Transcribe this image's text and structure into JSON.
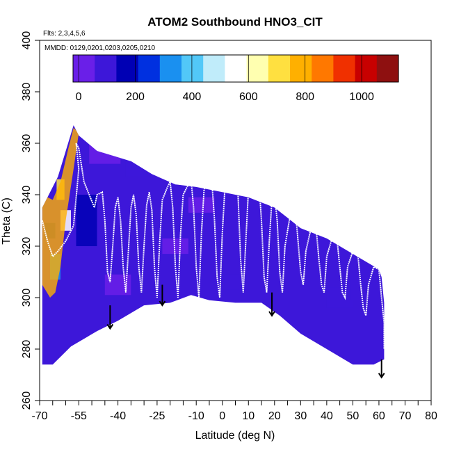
{
  "chart_data": {
    "type": "heatmap",
    "title": "ATOM2 Southbound HNO3_CIT",
    "flights_label": "Flts: 2,3,4,5,6",
    "dates_label": "MMDD: 0129,0201,0203,0205,0210",
    "xlabel": "Latitude (deg N)",
    "ylabel": "Theta (C)",
    "xlim": [
      -70,
      80
    ],
    "ylim": [
      260,
      400
    ],
    "x_ticks": [
      -70,
      -55,
      -40,
      -25,
      -10,
      0,
      10,
      20,
      30,
      40,
      50,
      60,
      70,
      80
    ],
    "x_tick_labels": [
      "-70",
      "-55",
      "-40",
      "-25",
      "-10",
      "0",
      "10",
      "20",
      "30",
      "40",
      "50",
      "60",
      "70",
      "80"
    ],
    "x_minor_ticks": [
      -65,
      -60,
      -50,
      -45,
      -35,
      -30,
      -20,
      -15,
      -5,
      5,
      15,
      25,
      35,
      45,
      55,
      65,
      75
    ],
    "y_ticks": [
      260,
      280,
      300,
      320,
      340,
      360,
      380,
      400
    ],
    "y_tick_labels": [
      "260",
      "280",
      "300",
      "320",
      "340",
      "360",
      "380",
      "400"
    ],
    "colorbar": {
      "range": [
        -20,
        1130
      ],
      "ticks": [
        0,
        200,
        400,
        600,
        800,
        1000
      ],
      "tick_labels": [
        "0",
        "200",
        "400",
        "600",
        "800",
        "1000"
      ],
      "colors": [
        "#6a1fe8",
        "#3d17d9",
        "#0000b4",
        "#0030e0",
        "#1a90f0",
        "#52c8f8",
        "#c0ecfa",
        "#ffffff",
        "#ffffb0",
        "#ffe040",
        "#ffb000",
        "#ff7800",
        "#f03000",
        "#c80000",
        "#8e1010"
      ]
    },
    "domain_upper": [
      [
        -69,
        335
      ],
      [
        -63,
        347
      ],
      [
        -57,
        367
      ],
      [
        -55,
        363
      ],
      [
        -48,
        357
      ],
      [
        -35,
        353
      ],
      [
        -27,
        348
      ],
      [
        -18,
        344
      ],
      [
        -10,
        343
      ],
      [
        0,
        341
      ],
      [
        10,
        339
      ],
      [
        20,
        335
      ],
      [
        25,
        331
      ],
      [
        30,
        327
      ],
      [
        35,
        325
      ],
      [
        40,
        323
      ],
      [
        45,
        320
      ],
      [
        50,
        317
      ],
      [
        55,
        314
      ],
      [
        60,
        311
      ],
      [
        61,
        308
      ],
      [
        62,
        298
      ]
    ],
    "domain_lower": [
      [
        -69,
        274
      ],
      [
        -65,
        274
      ],
      [
        -58,
        281
      ],
      [
        -48,
        287
      ],
      [
        -40,
        291
      ],
      [
        -30,
        297
      ],
      [
        -20,
        298
      ],
      [
        -12,
        301
      ],
      [
        -5,
        299
      ],
      [
        5,
        298
      ],
      [
        15,
        298
      ],
      [
        22,
        293
      ],
      [
        30,
        286
      ],
      [
        40,
        280
      ],
      [
        50,
        274
      ],
      [
        58,
        274
      ],
      [
        62,
        276
      ]
    ],
    "warm_region": [
      [
        -69,
        340
      ],
      [
        -65,
        338
      ],
      [
        -62,
        345
      ],
      [
        -59,
        358
      ],
      [
        -57,
        366
      ],
      [
        -55,
        364
      ],
      [
        -57,
        350
      ],
      [
        -60,
        330
      ],
      [
        -62,
        312
      ],
      [
        -64,
        302
      ],
      [
        -66,
        300
      ],
      [
        -69,
        305
      ]
    ],
    "patches": [
      {
        "lat": -45,
        "theta": 356,
        "w": 12,
        "h": 8,
        "value": 40
      },
      {
        "lat": -30,
        "theta": 350,
        "w": 14,
        "h": 6,
        "value": 60
      },
      {
        "lat": -52,
        "theta": 330,
        "w": 8,
        "h": 20,
        "value": 180
      },
      {
        "lat": -18,
        "theta": 320,
        "w": 10,
        "h": 6,
        "value": 50
      },
      {
        "lat": -8,
        "theta": 336,
        "w": 10,
        "h": 6,
        "value": 30
      },
      {
        "lat": 18,
        "theta": 327,
        "w": 8,
        "h": 8,
        "value": 120
      },
      {
        "lat": 30,
        "theta": 320,
        "w": 10,
        "h": 6,
        "value": 60
      },
      {
        "lat": 45,
        "theta": 300,
        "w": 10,
        "h": 8,
        "value": 130
      },
      {
        "lat": 52,
        "theta": 303,
        "w": 6,
        "h": 8,
        "value": 90
      },
      {
        "lat": -40,
        "theta": 305,
        "w": 10,
        "h": 8,
        "value": 20
      },
      {
        "lat": 5,
        "theta": 306,
        "w": 8,
        "h": 6,
        "value": 100
      },
      {
        "lat": -60,
        "theta": 330,
        "w": 4,
        "h": 8,
        "value": 560
      },
      {
        "lat": -64,
        "theta": 312,
        "w": 4,
        "h": 10,
        "value": 360
      },
      {
        "lat": -66,
        "theta": 326,
        "w": 4,
        "h": 6,
        "value": 200
      },
      {
        "lat": -62,
        "theta": 342,
        "w": 3,
        "h": 8,
        "value": 700
      }
    ],
    "flight_track": [
      [
        -69,
        330
      ],
      [
        -67,
        322
      ],
      [
        -65,
        316
      ],
      [
        -63,
        318
      ],
      [
        -60,
        322
      ],
      [
        -57,
        328
      ],
      [
        -55,
        350
      ],
      [
        -56,
        360
      ],
      [
        -55,
        358
      ],
      [
        -53,
        345
      ],
      [
        -51,
        340
      ],
      [
        -49,
        335
      ],
      [
        -48,
        340
      ],
      [
        -46,
        341
      ],
      [
        -45,
        330
      ],
      [
        -44,
        310
      ],
      [
        -43,
        306
      ],
      [
        -42,
        320
      ],
      [
        -41,
        335
      ],
      [
        -40,
        339
      ],
      [
        -39,
        330
      ],
      [
        -38,
        312
      ],
      [
        -37,
        302
      ],
      [
        -36,
        318
      ],
      [
        -35,
        335
      ],
      [
        -34,
        340
      ],
      [
        -33,
        332
      ],
      [
        -32,
        312
      ],
      [
        -31,
        302
      ],
      [
        -30,
        320
      ],
      [
        -29,
        336
      ],
      [
        -28,
        341
      ],
      [
        -27,
        334
      ],
      [
        -26,
        312
      ],
      [
        -25,
        300
      ],
      [
        -24,
        322
      ],
      [
        -23,
        338
      ],
      [
        -21,
        343
      ],
      [
        -20,
        345
      ],
      [
        -19,
        335
      ],
      [
        -18,
        312
      ],
      [
        -17,
        300
      ],
      [
        -16,
        325
      ],
      [
        -15,
        340
      ],
      [
        -13,
        344
      ],
      [
        -12,
        346
      ],
      [
        -11,
        335
      ],
      [
        -10,
        312
      ],
      [
        -9,
        300
      ],
      [
        -8,
        325
      ],
      [
        -7,
        342
      ],
      [
        -5,
        346
      ],
      [
        -4,
        345
      ],
      [
        -3,
        330
      ],
      [
        -2,
        308
      ],
      [
        -1,
        300
      ],
      [
        0,
        325
      ],
      [
        1,
        343
      ],
      [
        3,
        348
      ],
      [
        5,
        349
      ],
      [
        6,
        340
      ],
      [
        7,
        315
      ],
      [
        8,
        302
      ],
      [
        9,
        322
      ],
      [
        10,
        342
      ],
      [
        12,
        347
      ],
      [
        14,
        345
      ],
      [
        15,
        330
      ],
      [
        16,
        308
      ],
      [
        17,
        302
      ],
      [
        18,
        322
      ],
      [
        19,
        338
      ],
      [
        20,
        340
      ],
      [
        21,
        330
      ],
      [
        22,
        310
      ],
      [
        23,
        302
      ],
      [
        24,
        320
      ],
      [
        26,
        332
      ],
      [
        28,
        334
      ],
      [
        29,
        322
      ],
      [
        30,
        310
      ],
      [
        31,
        305
      ],
      [
        32,
        318
      ],
      [
        34,
        327
      ],
      [
        36,
        326
      ],
      [
        37,
        315
      ],
      [
        38,
        305
      ],
      [
        39,
        302
      ],
      [
        40,
        316
      ],
      [
        42,
        323
      ],
      [
        44,
        322
      ],
      [
        45,
        312
      ],
      [
        46,
        302
      ],
      [
        47,
        300
      ],
      [
        48,
        312
      ],
      [
        50,
        318
      ],
      [
        52,
        316
      ],
      [
        53,
        305
      ],
      [
        54,
        296
      ],
      [
        55,
        293
      ],
      [
        56,
        305
      ],
      [
        58,
        312
      ],
      [
        60,
        311
      ],
      [
        61,
        300
      ],
      [
        62,
        290
      ],
      [
        62,
        280
      ]
    ],
    "descent_arrows": [
      {
        "lat": -43,
        "theta_start": 297,
        "theta_end": 288
      },
      {
        "lat": -23,
        "theta_start": 305,
        "theta_end": 297
      },
      {
        "lat": 19,
        "theta_start": 302,
        "theta_end": 293
      },
      {
        "lat": 61,
        "theta_start": 276,
        "theta_end": 269
      }
    ]
  }
}
